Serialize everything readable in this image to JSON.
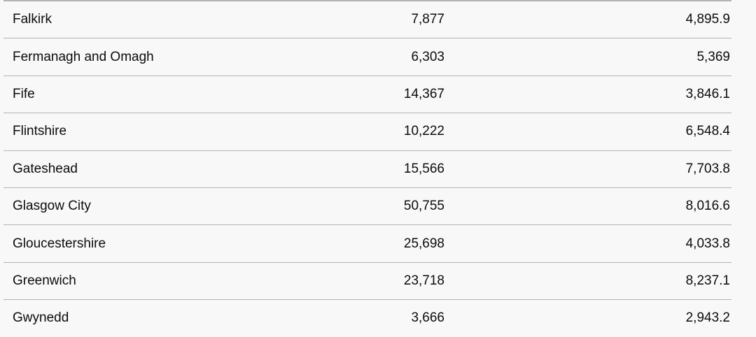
{
  "table": {
    "rows": [
      [
        "Falkirk",
        "7,877",
        "4,895.9"
      ],
      [
        "Fermanagh and Omagh",
        "6,303",
        "5,369"
      ],
      [
        "Fife",
        "14,367",
        "3,846.1"
      ],
      [
        "Flintshire",
        "10,222",
        "6,548.4"
      ],
      [
        "Gateshead",
        "15,566",
        "7,703.8"
      ],
      [
        "Glasgow City",
        "50,755",
        "8,016.6"
      ],
      [
        "Gloucestershire",
        "25,698",
        "4,033.8"
      ],
      [
        "Greenwich",
        "23,718",
        "8,237.1"
      ],
      [
        "Gwynedd",
        "3,666",
        "2,943.2"
      ]
    ]
  }
}
